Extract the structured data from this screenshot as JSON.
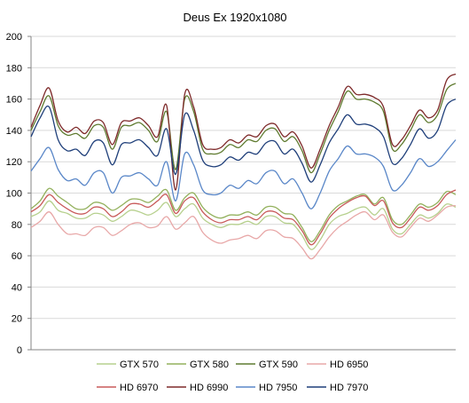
{
  "chart_data": {
    "type": "line",
    "title": "Deus Ex 1920x1080",
    "xlabel": "",
    "ylabel": "",
    "ylim": [
      0,
      200
    ],
    "y_ticks": [
      0,
      20,
      40,
      60,
      80,
      100,
      120,
      140,
      160,
      180,
      200
    ],
    "grid": true,
    "legend_position": "bottom",
    "x_range": [
      0,
      47
    ],
    "series": [
      {
        "name": "GTX 570",
        "color": "#b6d08d",
        "values": [
          85,
          88,
          95,
          89,
          87,
          84,
          84,
          87,
          86,
          82,
          85,
          89,
          88,
          86,
          89,
          94,
          85,
          90,
          93,
          84,
          80,
          78,
          80,
          80,
          82,
          80,
          85,
          85,
          81,
          80,
          73,
          64,
          70,
          80,
          85,
          87,
          90,
          91,
          86,
          90,
          77,
          74,
          80,
          86,
          84,
          87,
          93,
          91
        ]
      },
      {
        "name": "GTX 580",
        "color": "#93b15d",
        "values": [
          90,
          95,
          103,
          98,
          94,
          90,
          90,
          94,
          93,
          89,
          92,
          96,
          96,
          94,
          98,
          102,
          89,
          97,
          100,
          91,
          86,
          84,
          86,
          86,
          88,
          86,
          91,
          91,
          87,
          86,
          78,
          69,
          76,
          86,
          92,
          95,
          98,
          99,
          93,
          97,
          83,
          80,
          86,
          93,
          91,
          94,
          101,
          99
        ]
      },
      {
        "name": "GTX 590",
        "color": "#5f7b30",
        "values": [
          140,
          152,
          162,
          143,
          137,
          138,
          135,
          143,
          142,
          128,
          142,
          143,
          145,
          140,
          133,
          152,
          115,
          160,
          152,
          128,
          125,
          126,
          131,
          129,
          134,
          133,
          140,
          141,
          133,
          136,
          127,
          113,
          125,
          140,
          152,
          165,
          160,
          160,
          158,
          152,
          128,
          131,
          140,
          150,
          145,
          150,
          166,
          170
        ]
      },
      {
        "name": "HD 6950",
        "color": "#e8a8a8",
        "values": [
          78,
          82,
          88,
          80,
          74,
          74,
          73,
          78,
          78,
          73,
          76,
          80,
          81,
          78,
          79,
          85,
          77,
          81,
          85,
          75,
          70,
          68,
          70,
          71,
          73,
          71,
          76,
          76,
          72,
          71,
          65,
          58,
          64,
          72,
          78,
          82,
          86,
          88,
          83,
          86,
          75,
          72,
          78,
          84,
          82,
          86,
          91,
          92
        ]
      },
      {
        "name": "HD 6970",
        "color": "#c85a5a",
        "values": [
          88,
          92,
          99,
          94,
          90,
          87,
          87,
          91,
          90,
          85,
          88,
          93,
          93,
          91,
          95,
          99,
          87,
          95,
          97,
          88,
          83,
          81,
          83,
          83,
          85,
          83,
          88,
          88,
          84,
          83,
          76,
          67,
          74,
          84,
          90,
          94,
          97,
          98,
          92,
          95,
          81,
          78,
          84,
          91,
          89,
          92,
          99,
          102
        ]
      },
      {
        "name": "HD 6990",
        "color": "#7e2a2a",
        "values": [
          142,
          156,
          167,
          146,
          139,
          142,
          138,
          146,
          145,
          131,
          145,
          146,
          148,
          143,
          136,
          156,
          102,
          163,
          155,
          131,
          128,
          129,
          134,
          132,
          137,
          136,
          143,
          144,
          136,
          139,
          130,
          116,
          128,
          143,
          155,
          168,
          163,
          163,
          161,
          155,
          131,
          134,
          143,
          153,
          148,
          153,
          172,
          176
        ]
      },
      {
        "name": "HD 7950",
        "color": "#5a87c8",
        "values": [
          114,
          122,
          129,
          115,
          108,
          109,
          105,
          113,
          113,
          100,
          110,
          111,
          113,
          109,
          105,
          120,
          95,
          125,
          118,
          102,
          99,
          100,
          105,
          103,
          108,
          106,
          113,
          114,
          106,
          109,
          100,
          90,
          100,
          114,
          122,
          130,
          125,
          125,
          123,
          117,
          102,
          105,
          113,
          122,
          117,
          120,
          127,
          134
        ]
      },
      {
        "name": "HD 7970",
        "color": "#1f3f7a",
        "values": [
          136,
          148,
          155,
          134,
          127,
          128,
          124,
          133,
          132,
          118,
          131,
          132,
          134,
          129,
          124,
          141,
          112,
          150,
          140,
          121,
          117,
          118,
          123,
          121,
          126,
          125,
          132,
          133,
          125,
          128,
          119,
          107,
          118,
          132,
          141,
          150,
          144,
          144,
          142,
          136,
          119,
          122,
          131,
          141,
          135,
          140,
          156,
          160
        ]
      }
    ]
  }
}
